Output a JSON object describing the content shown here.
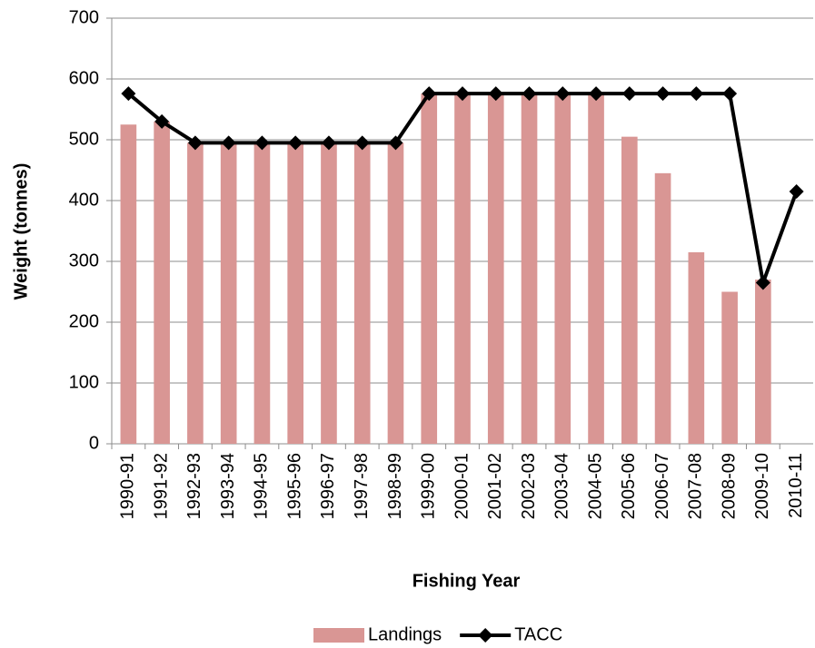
{
  "chart_data": {
    "type": "bar",
    "y_label": "Weight (tonnes)",
    "x_label": "Fishing Year",
    "categories": [
      "1990-91",
      "1991-92",
      "1992-93",
      "1993-94",
      "1994-95",
      "1995-96",
      "1996-97",
      "1997-98",
      "1998-99",
      "1999-00",
      "2000-01",
      "2001-02",
      "2002-03",
      "2003-04",
      "2004-05",
      "2005-06",
      "2006-07",
      "2007-08",
      "2008-09",
      "2009-10",
      "2010-11"
    ],
    "series": [
      {
        "name": "Landings",
        "type": "bar",
        "color": "#d99694",
        "values": [
          525,
          530,
          495,
          495,
          495,
          495,
          495,
          495,
          495,
          576,
          576,
          576,
          576,
          576,
          576,
          505,
          445,
          315,
          250,
          270,
          null
        ]
      },
      {
        "name": "TACC",
        "type": "line",
        "color": "#000000",
        "values": [
          576,
          530,
          495,
          495,
          495,
          495,
          495,
          495,
          495,
          576,
          576,
          576,
          576,
          576,
          576,
          576,
          576,
          576,
          576,
          265,
          415
        ]
      }
    ],
    "ylim": [
      0,
      700
    ],
    "yticks": [
      0,
      100,
      200,
      300,
      400,
      500,
      600,
      700
    ],
    "grid": true,
    "legend": "bottom"
  }
}
